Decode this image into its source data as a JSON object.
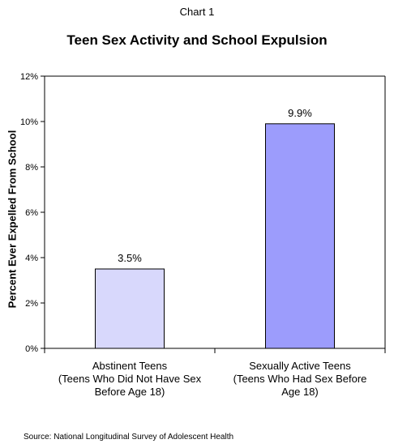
{
  "header": {
    "chart_label": "Chart 1"
  },
  "footer": {
    "source": "Source:  National Longitudinal Survey of Adolescent Health"
  },
  "chart_data": {
    "type": "bar",
    "title": "Teen Sex Activity and School Expulsion",
    "ylabel": "Percent Ever Expelled From School",
    "xlabel": "",
    "ylim": [
      0,
      12
    ],
    "yticks": [
      "0%",
      "2%",
      "4%",
      "6%",
      "8%",
      "10%",
      "12%"
    ],
    "ytick_values": [
      0,
      2,
      4,
      6,
      8,
      10,
      12
    ],
    "categories": [
      [
        "Abstinent Teens",
        "(Teens Who Did Not Have Sex",
        "Before Age 18)"
      ],
      [
        "Sexually Active Teens",
        "(Teens Who Had Sex Before",
        "Age 18)"
      ]
    ],
    "values": [
      3.5,
      9.9
    ],
    "data_labels": [
      "3.5%",
      "9.9%"
    ],
    "colors": [
      "#d8d8fc",
      "#9c9cfc"
    ],
    "grid": false,
    "legend": "none"
  }
}
